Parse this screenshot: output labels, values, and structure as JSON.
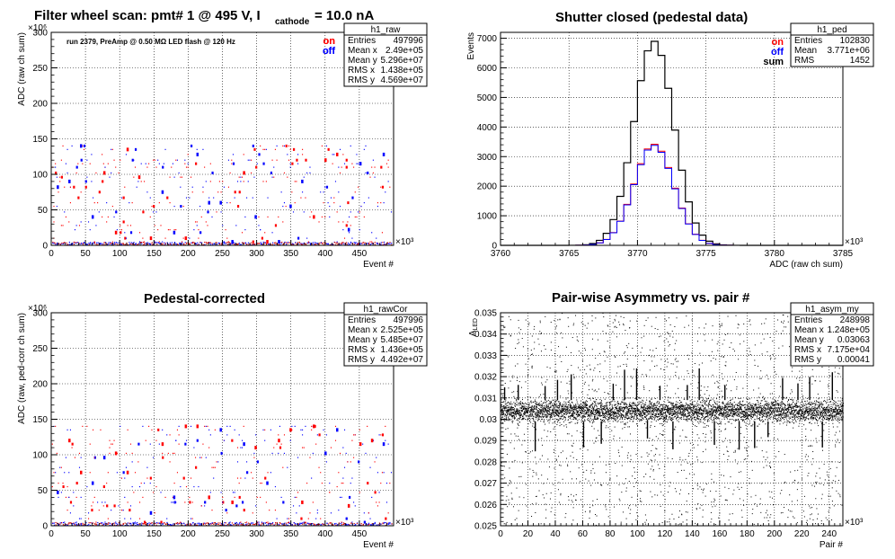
{
  "chart_data": [
    {
      "id": "raw",
      "type": "scatter",
      "title_main": "Filter wheel scan: pmt#   1 @   495 V, I",
      "title_sub": "cathode",
      "title_tail": "= 10.0 nA",
      "annotation": "run 2379, PreAmp @ 0.50 MΩ   LED flash @  120 Hz",
      "xlabel": "Event #",
      "ylabel": "ADC (raw ch sum)",
      "x_exponent": "×10³",
      "y_exponent": "×10⁶",
      "xlim": [
        0,
        500
      ],
      "ylim": [
        0,
        300
      ],
      "xticks": [
        0,
        50,
        100,
        150,
        200,
        250,
        300,
        350,
        400,
        450
      ],
      "yticks": [
        0,
        50,
        100,
        150,
        200,
        250,
        300
      ],
      "grid": true,
      "legend": [
        {
          "name": "on",
          "color": "#ff0000"
        },
        {
          "name": "off",
          "color": "#0000ff"
        }
      ],
      "stats": {
        "name": "h1_raw",
        "rows": [
          [
            "Entries",
            "497996"
          ],
          [
            "Mean x",
            "2.49e+05"
          ],
          [
            "Mean y",
            "5.296e+07"
          ],
          [
            "RMS x",
            "1.438e+05"
          ],
          [
            "RMS y",
            "4.569e+07"
          ]
        ]
      },
      "levels": [
        0,
        5,
        10,
        18,
        22,
        28,
        33,
        40,
        47,
        55,
        60,
        67,
        75,
        82,
        90,
        96,
        102,
        110,
        115,
        120,
        128,
        135,
        140
      ]
    },
    {
      "id": "ped",
      "type": "line",
      "title": "Shutter closed (pedestal data)",
      "xlabel": "ADC (raw ch sum)",
      "ylabel": "Events",
      "x_exponent": "×10³",
      "xlim": [
        3760,
        3785
      ],
      "ylim": [
        0,
        7200
      ],
      "xticks": [
        3760,
        3765,
        3770,
        3775,
        3780,
        3785
      ],
      "yticks": [
        0,
        1000,
        2000,
        3000,
        4000,
        5000,
        6000,
        7000
      ],
      "grid": true,
      "legend": [
        {
          "name": "on",
          "color": "#ff0000"
        },
        {
          "name": "off",
          "color": "#0000ff"
        },
        {
          "name": "sum",
          "color": "#000000"
        }
      ],
      "stats": {
        "name": "h1_ped",
        "rows": [
          [
            "Entries",
            "102830"
          ],
          [
            "Mean",
            "3.771e+06"
          ],
          [
            "RMS",
            "1452"
          ]
        ]
      },
      "series": [
        {
          "name": "sum",
          "mean": 3771.2,
          "sigma": 1.45,
          "peak": 6900
        },
        {
          "name": "on",
          "mean": 3771.2,
          "sigma": 1.45,
          "peak": 3420
        },
        {
          "name": "off",
          "mean": 3771.2,
          "sigma": 1.45,
          "peak": 3380
        }
      ]
    },
    {
      "id": "rawCor",
      "type": "scatter",
      "title": "Pedestal-corrected",
      "xlabel": "Event #",
      "ylabel": "ADC (raw, ped-corr ch sum)",
      "x_exponent": "×10³",
      "y_exponent": "×10⁶",
      "xlim": [
        0,
        500
      ],
      "ylim": [
        0,
        300
      ],
      "xticks": [
        0,
        50,
        100,
        150,
        200,
        250,
        300,
        350,
        400,
        450
      ],
      "yticks": [
        0,
        50,
        100,
        150,
        200,
        250,
        300
      ],
      "grid": true,
      "legend": [
        {
          "name": "on",
          "color": "#ff0000"
        },
        {
          "name": "off",
          "color": "#0000ff"
        }
      ],
      "stats": {
        "name": "h1_rawCor",
        "rows": [
          [
            "Entries",
            "497996"
          ],
          [
            "Mean x",
            "2.525e+05"
          ],
          [
            "Mean y",
            "5.485e+07"
          ],
          [
            "RMS x",
            "1.436e+05"
          ],
          [
            "RMS y",
            "4.492e+07"
          ]
        ]
      },
      "levels": [
        0,
        5,
        10,
        18,
        22,
        28,
        33,
        40,
        47,
        55,
        60,
        67,
        75,
        82,
        90,
        96,
        102,
        110,
        115,
        120,
        128,
        135,
        140
      ]
    },
    {
      "id": "asym",
      "type": "scatter",
      "title": "Pair-wise Asymmetry vs. pair #",
      "xlabel": "Pair #",
      "ylabel": "A_LED",
      "x_exponent": "×10³",
      "xlim": [
        0,
        250
      ],
      "ylim": [
        0.025,
        0.035
      ],
      "xticks": [
        0,
        20,
        40,
        60,
        80,
        100,
        120,
        140,
        160,
        180,
        200,
        220,
        240
      ],
      "yticks": [
        0.025,
        0.026,
        0.027,
        0.028,
        0.029,
        0.03,
        0.031,
        0.032,
        0.033,
        0.034,
        0.035
      ],
      "grid": true,
      "stats": {
        "name": "h1_asym_my",
        "rows": [
          [
            "Entries",
            "248998"
          ],
          [
            "Mean x",
            "1.248e+05"
          ],
          [
            "Mean y",
            "0.03063"
          ],
          [
            "RMS x",
            "7.175e+04"
          ],
          [
            "RMS y",
            "0.00041"
          ]
        ]
      },
      "band_center": 0.0304,
      "band_halfwidth": 0.0005
    }
  ]
}
